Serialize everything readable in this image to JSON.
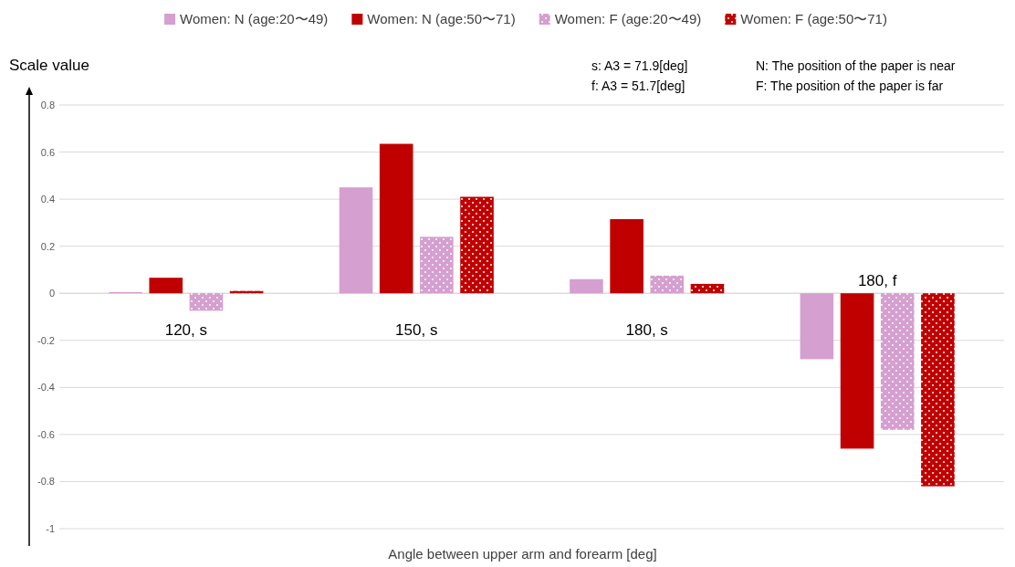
{
  "chart_data": {
    "type": "bar",
    "categories": [
      "120, s",
      "150, s",
      "180, s",
      "180, f"
    ],
    "series": [
      {
        "name": "Women: N (age:20〜49)",
        "color": "#d59fd0",
        "values": [
          0.005,
          0.45,
          0.06,
          -0.28
        ]
      },
      {
        "name": "Women: N (age:50〜71)",
        "color": "#c00000",
        "values": [
          0.066,
          0.635,
          0.315,
          -0.66
        ]
      },
      {
        "name": "Women: F (age:20〜49)",
        "color": "#d59fd0",
        "values": [
          -0.074,
          0.24,
          0.075,
          -0.58
        ]
      },
      {
        "name": "Women: F (age:50〜71)",
        "color": "#c00000",
        "values": [
          0.01,
          0.41,
          0.04,
          -0.82
        ]
      }
    ],
    "ylabel": "Scale value",
    "xlabel": "Angle between upper arm and forearm [deg]",
    "ylim": [
      -1,
      0.8
    ],
    "yticks": [
      -1,
      -0.8,
      -0.6,
      -0.4,
      -0.2,
      0,
      0.2,
      0.4,
      0.6,
      0.8
    ],
    "grid": "y",
    "legend": "top",
    "annotations": [
      "s: A3 = 71.9[deg]",
      "f: A3 = 51.7[deg]",
      "N: The position of the paper is near",
      "F: The position of the paper is far"
    ]
  }
}
